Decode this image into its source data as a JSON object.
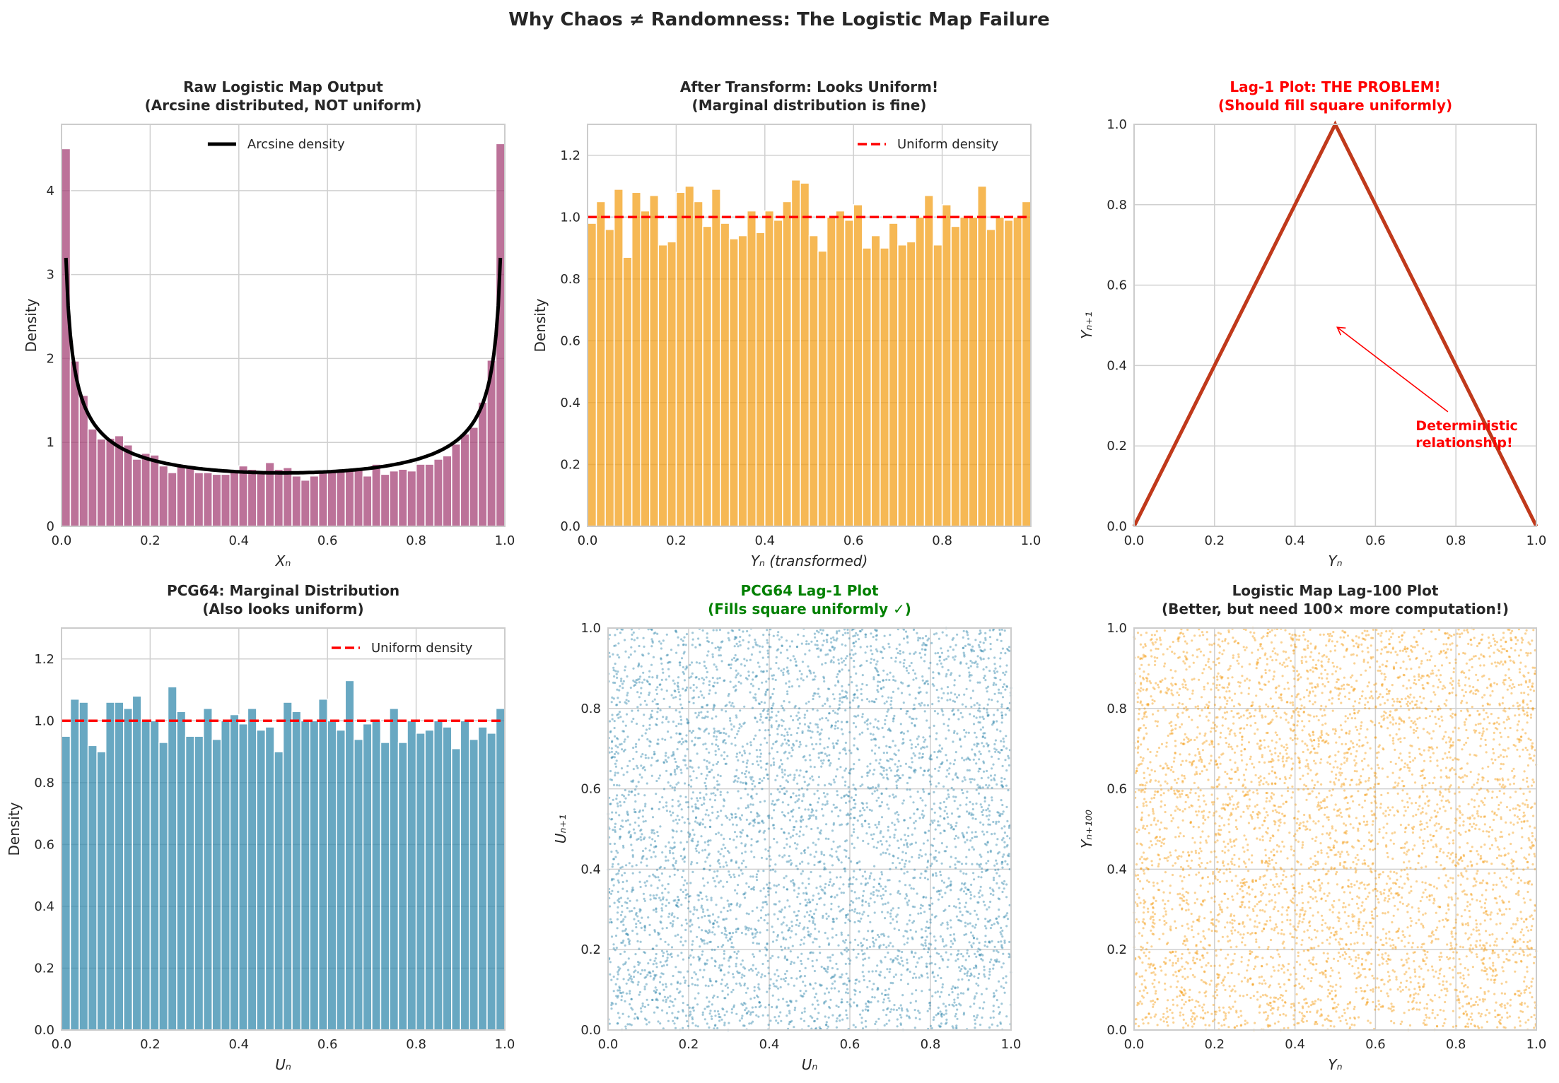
{
  "suptitle": "Why Chaos ≠ Randomness: The Logistic Map Failure",
  "colors": {
    "logistic_raw": "#a23b72",
    "logistic_transformed": "#f39c12",
    "pcg64": "#2e86ab",
    "lag1_line": "#c0391b",
    "reference": "#ff0000",
    "problem_title": "#ff0000",
    "good_title": "#008000",
    "neutral_title": "#262626"
  },
  "chart_data": [
    {
      "type": "bar",
      "title": [
        "Raw Logistic Map Output",
        "(Arcsine distributed, NOT uniform)"
      ],
      "title_color": "neutral_title",
      "xlabel": "Xₙ",
      "ylabel": "Density",
      "xlim": [
        0,
        1
      ],
      "ylim": [
        0,
        4.79
      ],
      "xticks": [
        "0.0",
        "0.2",
        "0.4",
        "0.6",
        "0.8",
        "1.0"
      ],
      "yticks": [
        "0",
        "1",
        "2",
        "3",
        "4"
      ],
      "bar_color": "logistic_raw",
      "bins": 50,
      "values": [
        4.5,
        1.97,
        1.56,
        1.16,
        1.04,
        1.05,
        1.08,
        0.97,
        0.8,
        0.87,
        0.85,
        0.72,
        0.64,
        0.72,
        0.7,
        0.64,
        0.64,
        0.62,
        0.62,
        0.66,
        0.72,
        0.68,
        0.65,
        0.76,
        0.68,
        0.7,
        0.6,
        0.55,
        0.6,
        0.65,
        0.66,
        0.66,
        0.68,
        0.7,
        0.6,
        0.74,
        0.62,
        0.66,
        0.68,
        0.66,
        0.74,
        0.74,
        0.8,
        0.84,
        0.98,
        1.1,
        1.18,
        1.48,
        1.98,
        4.56
      ],
      "overlay": {
        "type": "line",
        "name": "Arcsine density",
        "function": "1/(pi*sqrt(x(1-x)))",
        "x_range": [
          0.01,
          0.99
        ],
        "color": "#000000",
        "style": "solid"
      },
      "legend": "top-center",
      "grid": true
    },
    {
      "type": "bar",
      "title": [
        "After Transform: Looks Uniform!",
        "(Marginal distribution is fine)"
      ],
      "title_color": "neutral_title",
      "xlabel": "Yₙ (transformed)",
      "ylabel": "Density",
      "xlim": [
        0,
        1
      ],
      "ylim": [
        0,
        1.3
      ],
      "xticks": [
        "0.0",
        "0.2",
        "0.4",
        "0.6",
        "0.8",
        "1.0"
      ],
      "yticks": [
        "0.0",
        "0.2",
        "0.4",
        "0.6",
        "0.8",
        "1.0",
        "1.2"
      ],
      "bar_color": "logistic_transformed",
      "bins": 50,
      "values": [
        0.98,
        1.05,
        0.96,
        1.09,
        0.87,
        1.08,
        1.02,
        1.07,
        0.91,
        0.92,
        1.08,
        1.1,
        1.05,
        0.97,
        1.09,
        0.98,
        0.93,
        0.94,
        1.02,
        0.95,
        1.02,
        0.99,
        1.05,
        1.12,
        1.11,
        0.94,
        0.89,
        1.0,
        1.02,
        0.99,
        1.04,
        0.9,
        0.94,
        0.9,
        0.98,
        0.91,
        0.92,
        1.0,
        1.07,
        0.91,
        1.04,
        0.97,
        1.0,
        1.0,
        1.1,
        0.96,
        1.0,
        0.99,
        1.0,
        1.05
      ],
      "overlay": {
        "type": "hline",
        "name": "Uniform density",
        "y": 1.0,
        "color": "#ff0000",
        "style": "dashed"
      },
      "legend": "top-right",
      "grid": true
    },
    {
      "type": "line",
      "title": [
        "Lag-1 Plot: THE PROBLEM!",
        "(Should fill square uniformly)"
      ],
      "title_color": "problem_title",
      "xlabel": "Yₙ",
      "ylabel": "Yₙ₊₁",
      "xlim": [
        0,
        1
      ],
      "ylim": [
        0,
        1
      ],
      "xticks": [
        "0.0",
        "0.2",
        "0.4",
        "0.6",
        "0.8",
        "1.0"
      ],
      "yticks": [
        "0.0",
        "0.2",
        "0.4",
        "0.6",
        "0.8",
        "1.0"
      ],
      "x": [
        0,
        0.5,
        1
      ],
      "y": [
        0,
        1,
        0
      ],
      "line_color": "lag1_line",
      "annotation": {
        "text": [
          "Deterministic",
          "relationship!"
        ],
        "xy": [
          0.5,
          0.5
        ],
        "xytext": [
          0.7,
          0.2
        ],
        "color": "#ff0000"
      },
      "grid": true
    },
    {
      "type": "bar",
      "title": [
        "PCG64: Marginal Distribution",
        "(Also looks uniform)"
      ],
      "title_color": "neutral_title",
      "xlabel": "Uₙ",
      "ylabel": "Density",
      "xlim": [
        0,
        1
      ],
      "ylim": [
        0,
        1.3
      ],
      "xticks": [
        "0.0",
        "0.2",
        "0.4",
        "0.6",
        "0.8",
        "1.0"
      ],
      "yticks": [
        "0.0",
        "0.2",
        "0.4",
        "0.6",
        "0.8",
        "1.0",
        "1.2"
      ],
      "bar_color": "pcg64",
      "bins": 50,
      "values": [
        0.95,
        1.07,
        1.06,
        0.92,
        0.9,
        1.06,
        1.06,
        1.04,
        1.08,
        1.0,
        1.0,
        0.93,
        1.11,
        1.03,
        0.95,
        0.95,
        1.04,
        0.94,
        1.0,
        1.02,
        0.99,
        1.04,
        0.97,
        0.98,
        0.9,
        1.06,
        1.03,
        1.0,
        1.0,
        1.07,
        1.0,
        0.97,
        1.13,
        0.94,
        0.99,
        1.0,
        0.93,
        1.04,
        0.93,
        1.0,
        0.96,
        0.97,
        1.0,
        0.98,
        0.91,
        1.0,
        0.94,
        0.98,
        0.96,
        1.04
      ],
      "overlay": {
        "type": "hline",
        "name": "Uniform density",
        "y": 1.0,
        "color": "#ff0000",
        "style": "dashed"
      },
      "legend": "top-right",
      "grid": true
    },
    {
      "type": "scatter",
      "title": [
        "PCG64 Lag-1 Plot",
        "(Fills square uniformly ✓)"
      ],
      "title_color": "good_title",
      "xlabel": "Uₙ",
      "ylabel": "Uₙ₊₁",
      "xlim": [
        0,
        1
      ],
      "ylim": [
        0,
        1
      ],
      "xticks": [
        "0.0",
        "0.2",
        "0.4",
        "0.6",
        "0.8",
        "1.0"
      ],
      "yticks": [
        "0.0",
        "0.2",
        "0.4",
        "0.6",
        "0.8",
        "1.0"
      ],
      "distribution": "uniform on unit square",
      "point_color": "pcg64",
      "grid": true
    },
    {
      "type": "scatter",
      "title": [
        "Logistic Map Lag-100 Plot",
        "(Better, but need 100× more computation!)"
      ],
      "title_color": "neutral_title",
      "xlabel": "Yₙ",
      "ylabel": "Yₙ₊₁₀₀",
      "xlim": [
        0,
        1
      ],
      "ylim": [
        0,
        1
      ],
      "xticks": [
        "0.0",
        "0.2",
        "0.4",
        "0.6",
        "0.8",
        "1.0"
      ],
      "yticks": [
        "0.0",
        "0.2",
        "0.4",
        "0.6",
        "0.8",
        "1.0"
      ],
      "distribution": "uniform on unit square",
      "point_color": "logistic_transformed",
      "grid": true
    }
  ]
}
